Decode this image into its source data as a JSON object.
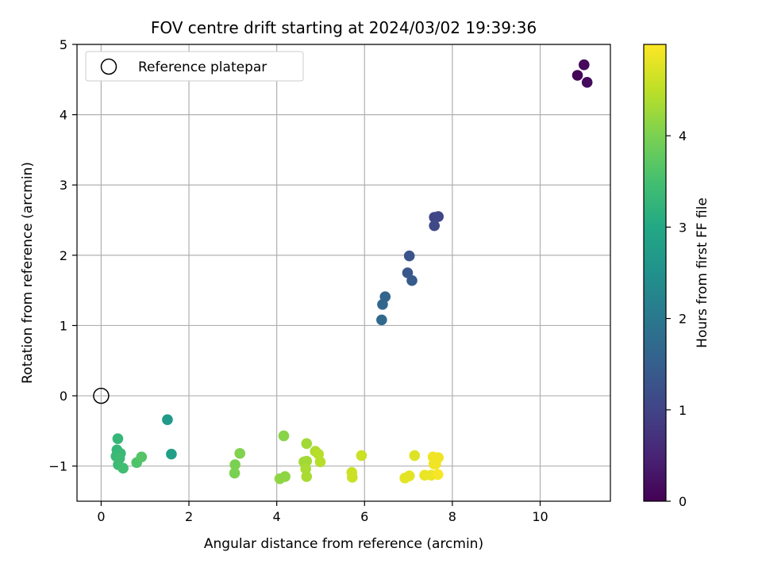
{
  "chart_data": {
    "type": "scatter",
    "title": "FOV centre drift starting at 2024/03/02 19:39:36",
    "xlabel": "Angular distance from reference (arcmin)",
    "ylabel": "Rotation from reference (arcmin)",
    "xlim": [
      -0.55,
      11.6
    ],
    "ylim": [
      -1.5,
      5.0
    ],
    "xticks": [
      0,
      2,
      4,
      6,
      8,
      10
    ],
    "yticks": [
      -1,
      0,
      1,
      2,
      3,
      4,
      5
    ],
    "xtick_labels": [
      "0",
      "2",
      "4",
      "6",
      "8",
      "10"
    ],
    "ytick_labels": [
      "−1",
      "0",
      "1",
      "2",
      "3",
      "4",
      "5"
    ],
    "grid": true,
    "legend": {
      "placement": "top-left",
      "entries": [
        {
          "label": "Reference platepar",
          "marker": "open-circle"
        }
      ]
    },
    "reference_point": {
      "x": 0,
      "y": 0
    },
    "colorbar": {
      "label": "Hours from first FF file",
      "range": [
        0,
        5.0
      ],
      "ticks": [
        0,
        1,
        2,
        3,
        4
      ],
      "tick_labels": [
        "0",
        "1",
        "2",
        "3",
        "4"
      ],
      "colormap": "viridis"
    },
    "points": [
      {
        "x": 10.85,
        "y": 4.56,
        "c": 0.05
      },
      {
        "x": 11.0,
        "y": 4.71,
        "c": 0.1
      },
      {
        "x": 11.07,
        "y": 4.46,
        "c": 0.15
      },
      {
        "x": 7.59,
        "y": 2.54,
        "c": 1.0
      },
      {
        "x": 7.68,
        "y": 2.55,
        "c": 1.05
      },
      {
        "x": 7.59,
        "y": 2.42,
        "c": 1.1
      },
      {
        "x": 7.02,
        "y": 1.99,
        "c": 1.3
      },
      {
        "x": 6.98,
        "y": 1.75,
        "c": 1.35
      },
      {
        "x": 7.08,
        "y": 1.64,
        "c": 1.4
      },
      {
        "x": 6.47,
        "y": 1.41,
        "c": 1.6
      },
      {
        "x": 6.41,
        "y": 1.3,
        "c": 1.65
      },
      {
        "x": 6.39,
        "y": 1.08,
        "c": 1.7
      },
      {
        "x": 1.51,
        "y": -0.34,
        "c": 2.7
      },
      {
        "x": 1.6,
        "y": -0.83,
        "c": 2.8
      },
      {
        "x": 0.38,
        "y": -0.61,
        "c": 3.3
      },
      {
        "x": 0.36,
        "y": -0.77,
        "c": 3.3
      },
      {
        "x": 0.44,
        "y": -0.82,
        "c": 3.35
      },
      {
        "x": 0.34,
        "y": -0.86,
        "c": 3.35
      },
      {
        "x": 0.42,
        "y": -0.89,
        "c": 3.4
      },
      {
        "x": 0.39,
        "y": -0.98,
        "c": 3.4
      },
      {
        "x": 0.5,
        "y": -1.03,
        "c": 3.45
      },
      {
        "x": 0.81,
        "y": -0.95,
        "c": 3.6
      },
      {
        "x": 0.92,
        "y": -0.87,
        "c": 3.65
      },
      {
        "x": 3.05,
        "y": -0.98,
        "c": 4.0
      },
      {
        "x": 3.04,
        "y": -1.1,
        "c": 4.0
      },
      {
        "x": 3.16,
        "y": -0.82,
        "c": 4.05
      },
      {
        "x": 4.16,
        "y": -0.57,
        "c": 4.1
      },
      {
        "x": 4.07,
        "y": -1.18,
        "c": 4.15
      },
      {
        "x": 4.19,
        "y": -1.15,
        "c": 4.15
      },
      {
        "x": 4.68,
        "y": -0.68,
        "c": 4.3
      },
      {
        "x": 4.62,
        "y": -0.94,
        "c": 4.3
      },
      {
        "x": 4.68,
        "y": -0.93,
        "c": 4.3
      },
      {
        "x": 4.66,
        "y": -1.04,
        "c": 4.35
      },
      {
        "x": 4.68,
        "y": -1.15,
        "c": 4.35
      },
      {
        "x": 4.88,
        "y": -0.79,
        "c": 4.4
      },
      {
        "x": 4.95,
        "y": -0.83,
        "c": 4.45
      },
      {
        "x": 4.99,
        "y": -0.94,
        "c": 4.45
      },
      {
        "x": 5.71,
        "y": -1.09,
        "c": 4.6
      },
      {
        "x": 5.72,
        "y": -1.16,
        "c": 4.6
      },
      {
        "x": 5.93,
        "y": -0.85,
        "c": 4.6
      },
      {
        "x": 7.14,
        "y": -0.85,
        "c": 4.75
      },
      {
        "x": 6.92,
        "y": -1.17,
        "c": 4.8
      },
      {
        "x": 7.02,
        "y": -1.14,
        "c": 4.8
      },
      {
        "x": 7.37,
        "y": -1.13,
        "c": 4.85
      },
      {
        "x": 7.52,
        "y": -1.13,
        "c": 4.85
      },
      {
        "x": 7.56,
        "y": -0.87,
        "c": 4.9
      },
      {
        "x": 7.68,
        "y": -0.88,
        "c": 4.9
      },
      {
        "x": 7.58,
        "y": -0.97,
        "c": 4.9
      },
      {
        "x": 7.62,
        "y": -0.97,
        "c": 4.9
      },
      {
        "x": 7.67,
        "y": -1.12,
        "c": 4.95
      }
    ]
  }
}
